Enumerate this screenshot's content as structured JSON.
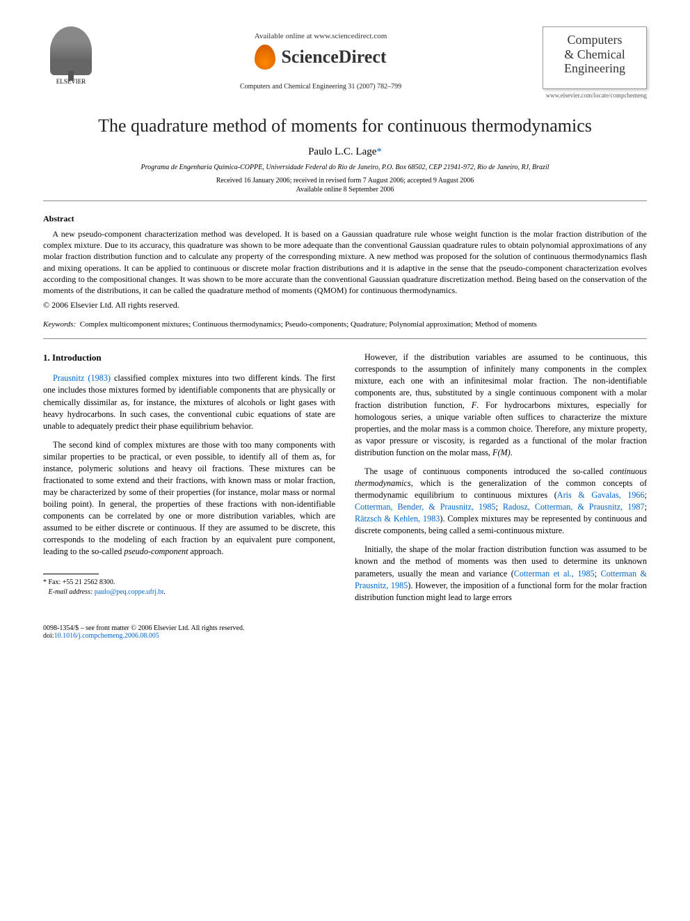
{
  "header": {
    "publisher": "ELSEVIER",
    "available_text": "Available online at www.sciencedirect.com",
    "sciencedirect": "ScienceDirect",
    "journal_ref": "Computers and Chemical Engineering 31 (2007) 782–799",
    "journal_box_line1": "Computers",
    "journal_box_line2": "& Chemical",
    "journal_box_line3": "Engineering",
    "journal_url": "www.elsevier.com/locate/compchemeng"
  },
  "title": "The quadrature method of moments for continuous thermodynamics",
  "author": "Paulo L.C. Lage",
  "author_mark": "*",
  "affiliation": "Programa de Engenharia Química-COPPE, Universidade Federal do Rio de Janeiro, P.O. Box 68502, CEP 21941-972, Rio de Janeiro, RJ, Brazil",
  "dates_line1": "Received 16 January 2006; received in revised form 7 August 2006; accepted 9 August 2006",
  "dates_line2": "Available online 8 September 2006",
  "abstract": {
    "heading": "Abstract",
    "p1": "A new pseudo-component characterization method was developed. It is based on a Gaussian quadrature rule whose weight function is the molar fraction distribution of the complex mixture. Due to its accuracy, this quadrature was shown to be more adequate than the conventional Gaussian quadrature rules to obtain polynomial approximations of any molar fraction distribution function and to calculate any property of the corresponding mixture. A new method was proposed for the solution of continuous thermodynamics flash and mixing operations. It can be applied to continuous or discrete molar fraction distributions and it is adaptive in the sense that the pseudo-component characterization evolves according to the compositional changes. It was shown to be more accurate than the conventional Gaussian quadrature discretization method. Being based on the conservation of the moments of the distributions, it can be called the quadrature method of moments (QMOM) for continuous thermodynamics.",
    "copyright": "© 2006 Elsevier Ltd. All rights reserved."
  },
  "keywords": {
    "label": "Keywords:",
    "text": "Complex multicomponent mixtures; Continuous thermodynamics; Pseudo-components; Quadrature; Polynomial approximation; Method of moments"
  },
  "body": {
    "section_heading": "1. Introduction",
    "left": {
      "p1a": "Prausnitz (1983)",
      "p1b": " classified complex mixtures into two different kinds. The first one includes those mixtures formed by identifiable components that are physically or chemically dissimilar as, for instance, the mixtures of alcohols or light gases with heavy hydrocarbons. In such cases, the conventional cubic equations of state are unable to adequately predict their phase equilibrium behavior.",
      "p2a": "The second kind of complex mixtures are those with too many components with similar properties to be practical, or even possible, to identify all of them as, for instance, polymeric solutions and heavy oil fractions. These mixtures can be fractionated to some extend and their fractions, with known mass or molar fraction, may be characterized by some of their properties (for instance, molar mass or normal boiling point). In general, the properties of these fractions with non-identifiable components can be correlated by one or more distribution variables, which are assumed to be either discrete or continuous. If they are assumed to be discrete, this corresponds to the modeling of each fraction by an equivalent pure component, leading to the so-called ",
      "p2b": "pseudo-component",
      "p2c": " approach."
    },
    "right": {
      "p1a": "However, if the distribution variables are assumed to be continuous, this corresponds to the assumption of infinitely many components in the complex mixture, each one with an infinitesimal molar fraction. The non-identifiable components are, thus, substituted by a single continuous component with a molar fraction distribution function, ",
      "p1b": "F",
      "p1c": ". For hydrocarbons mixtures, especially for homologous series, a unique variable often suffices to characterize the mixture properties, and the molar mass is a common choice. Therefore, any mixture property, as vapor pressure or viscosity, is regarded as a functional of the molar fraction distribution function on the molar mass, ",
      "p1d": "F(M)",
      "p1e": ".",
      "p2a": "The usage of continuous components introduced the so-called ",
      "p2b": "continuous thermodynamics",
      "p2c": ", which is the generalization of the common concepts of thermodynamic equilibrium to continuous mixtures (",
      "p2d": "Aris & Gavalas, 1966",
      "p2e": "; ",
      "p2f": "Cotterman, Bender, & Prausnitz, 1985",
      "p2g": "; ",
      "p2h": "Radosz, Cotterman, & Prausnitz, 1987",
      "p2i": "; ",
      "p2j": "Rätzsch & Kehlen, 1983",
      "p2k": "). Complex mixtures may be represented by continuous and discrete components, being called a semi-continuous mixture.",
      "p3a": "Initially, the shape of the molar fraction distribution function was assumed to be known and the method of moments was then used to determine its unknown parameters, usually the mean and variance (",
      "p3b": "Cotterman et al., 1985",
      "p3c": "; ",
      "p3d": "Cotterman & Prausnitz, 1985",
      "p3e": "). However, the imposition of a functional form for the molar fraction distribution function might lead to large errors"
    }
  },
  "footnote": {
    "fax_label": "* Fax:",
    "fax": " +55 21 2562 8300.",
    "email_label": "E-mail address:",
    "email": "paulo@peq.coppe.ufrj.br"
  },
  "footer": {
    "line1": "0098-1354/$ – see front matter © 2006 Elsevier Ltd. All rights reserved.",
    "doi_label": "doi:",
    "doi": "10.1016/j.compchemeng.2006.08.005"
  },
  "colors": {
    "link": "#0066cc",
    "text": "#000000",
    "background": "#ffffff"
  }
}
